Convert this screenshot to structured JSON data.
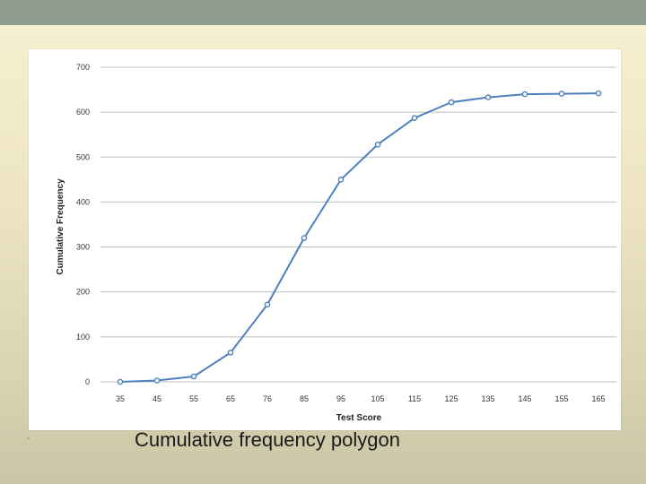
{
  "slide": {
    "caption_bullet": "•",
    "caption": "Cumulative frequency polygon"
  },
  "chart_data": {
    "type": "line",
    "title": "",
    "xlabel": "Test Score",
    "ylabel": "Cumulative Frequency",
    "categories": [
      "35",
      "45",
      "55",
      "65",
      "76",
      "85",
      "95",
      "105",
      "115",
      "125",
      "135",
      "145",
      "155",
      "165"
    ],
    "series": [
      {
        "values": [
          0,
          3,
          12,
          65,
          172,
          320,
          450,
          528,
          587,
          622,
          633,
          640,
          641,
          642
        ]
      }
    ],
    "ylim": [
      0,
      700
    ],
    "yticks": [
      "0",
      "100",
      "200",
      "300",
      "400",
      "500",
      "600",
      "700"
    ],
    "grid": true,
    "line_color": "#4f81bd",
    "marker": "circle"
  }
}
